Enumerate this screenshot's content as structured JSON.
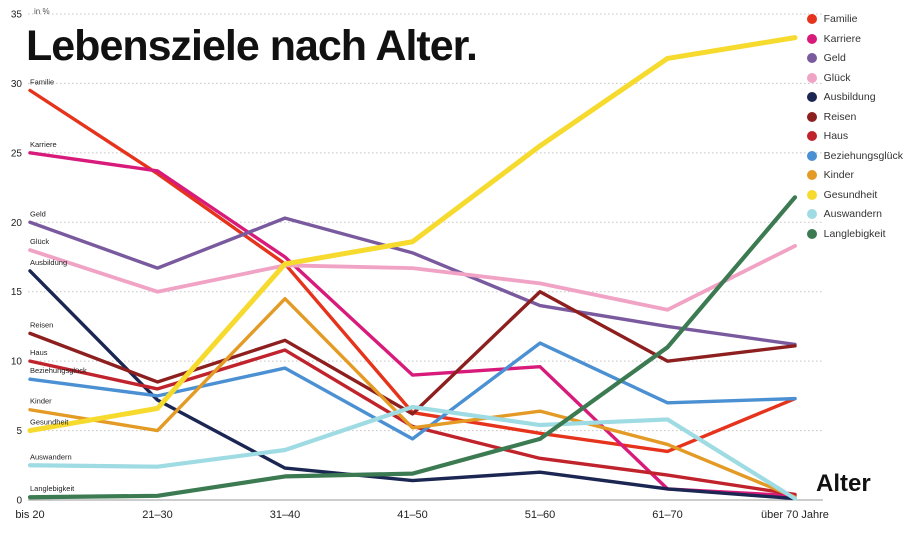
{
  "chart_data": {
    "type": "line",
    "title": "Lebensziele nach Alter.",
    "xlabel": "Alter",
    "unit": "in %",
    "ylim": [
      0,
      35
    ],
    "yticks": [
      0,
      5,
      10,
      15,
      20,
      25,
      30,
      35
    ],
    "grid": true,
    "legend_position": "top-right",
    "categories": [
      "bis 20",
      "21–30",
      "31–40",
      "41–50",
      "51–60",
      "61–70",
      "über 70 Jahre"
    ],
    "series": [
      {
        "name": "Familie",
        "color": "#e5331c",
        "width": 3.4,
        "values": [
          29.5,
          23.5,
          17.0,
          6.3,
          4.8,
          3.5,
          7.3
        ]
      },
      {
        "name": "Karriere",
        "color": "#d81b7b",
        "width": 3.4,
        "values": [
          25.0,
          23.7,
          17.5,
          9.0,
          9.6,
          0.8,
          0.3
        ]
      },
      {
        "name": "Geld",
        "color": "#7a5a9e",
        "width": 3.4,
        "values": [
          20.0,
          16.7,
          20.3,
          17.8,
          14.0,
          12.5,
          11.2
        ]
      },
      {
        "name": "Glück",
        "color": "#f0a3c4",
        "width": 3.8,
        "values": [
          18.0,
          15.0,
          16.9,
          16.7,
          15.6,
          13.7,
          18.3
        ]
      },
      {
        "name": "Ausbildung",
        "color": "#1b2653",
        "width": 3.4,
        "values": [
          16.5,
          7.2,
          2.3,
          1.4,
          2.0,
          0.8,
          0.1
        ]
      },
      {
        "name": "Reisen",
        "color": "#8e1f1f",
        "width": 3.4,
        "values": [
          12.0,
          8.5,
          11.5,
          6.2,
          15.0,
          10.0,
          11.1
        ]
      },
      {
        "name": "Haus",
        "color": "#c0232c",
        "width": 3.4,
        "values": [
          10.0,
          8.0,
          10.8,
          5.3,
          3.0,
          1.8,
          0.4
        ]
      },
      {
        "name": "Beziehungsglück",
        "color": "#4a90d2",
        "width": 3.4,
        "values": [
          8.7,
          7.5,
          9.5,
          4.4,
          11.3,
          7.0,
          7.3
        ]
      },
      {
        "name": "Kinder",
        "color": "#e39b25",
        "width": 3.4,
        "values": [
          6.5,
          5.0,
          14.5,
          5.2,
          6.4,
          4.0,
          0.2
        ]
      },
      {
        "name": "Gesundheit",
        "color": "#f6da2e",
        "width": 5.0,
        "values": [
          5.0,
          6.6,
          17.0,
          18.6,
          25.5,
          31.8,
          33.3
        ]
      },
      {
        "name": "Auswandern",
        "color": "#9fdbe3",
        "width": 4.2,
        "values": [
          2.5,
          2.4,
          3.6,
          6.7,
          5.4,
          5.8,
          0.1
        ]
      },
      {
        "name": "Langlebigkeit",
        "color": "#3c7a52",
        "width": 4.2,
        "values": [
          0.2,
          0.3,
          1.7,
          1.9,
          4.4,
          11.0,
          21.8
        ]
      }
    ]
  }
}
